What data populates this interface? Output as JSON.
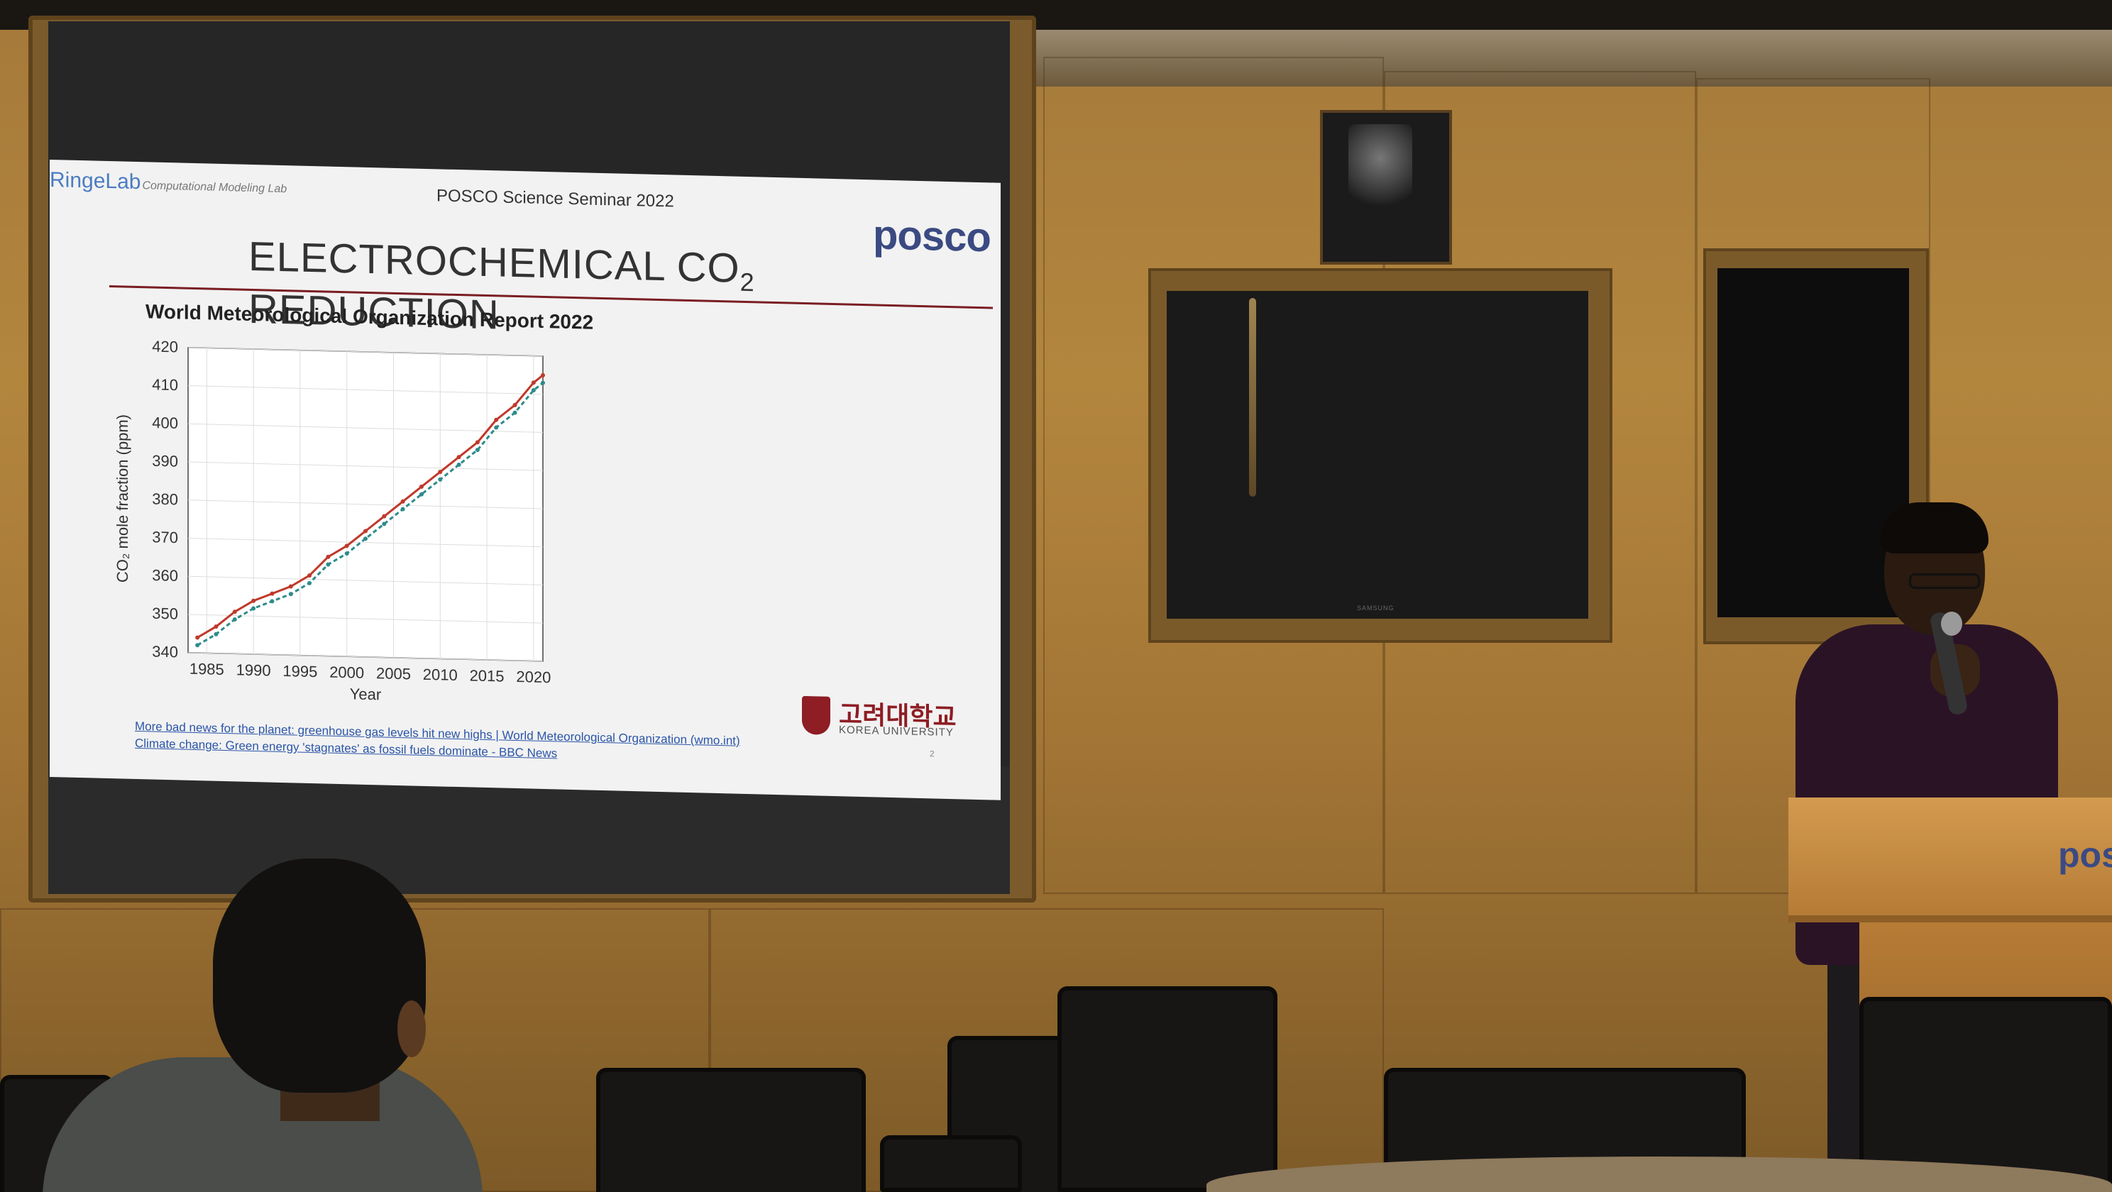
{
  "slide": {
    "lab_logo": "RingeLab",
    "lab_subtitle": "Computational Modeling Lab",
    "seminar_title": "POSCO Science Seminar 2022",
    "posco_logo": "posco",
    "title_main": "ELECTROCHEMICAL CO",
    "title_subscript": "2",
    "title_tail": " REDUCTION",
    "chart_heading": "World Meteorological Organization Report 2022",
    "university_korean": "고려대학교",
    "university_english": "KOREA UNIVERSITY",
    "page_number": "2",
    "source_links": [
      "More bad news for the planet: greenhouse gas levels hit new highs | World Meteorological Organization (wmo.int)",
      "Climate change: Green energy 'stagnates' as fossil fuels dominate - BBC News"
    ]
  },
  "tv_brand": "SAMSUNG",
  "podium_logo": "pos",
  "chart_data": {
    "type": "line",
    "title": "",
    "xlabel": "Year",
    "ylabel": "CO₂ mole fraction (ppm)",
    "xlim": [
      1983,
      2021
    ],
    "ylim": [
      340,
      420
    ],
    "xticks": [
      1985,
      1990,
      1995,
      2000,
      2005,
      2010,
      2015,
      2020
    ],
    "yticks": [
      340,
      350,
      360,
      370,
      380,
      390,
      400,
      410,
      420
    ],
    "grid": true,
    "series": [
      {
        "color": "#c0392b",
        "x": [
          1984,
          1986,
          1988,
          1990,
          1992,
          1994,
          1996,
          1998,
          2000,
          2002,
          2004,
          2006,
          2008,
          2010,
          2012,
          2014,
          2016,
          2018,
          2020,
          2021
        ],
        "values": [
          344,
          347,
          351,
          354,
          356,
          358,
          361,
          366,
          369,
          373,
          377,
          381,
          385,
          389,
          393,
          397,
          403,
          407,
          413,
          415
        ]
      },
      {
        "color": "#2e8b8b",
        "x": [
          1984,
          1986,
          1988,
          1990,
          1992,
          1994,
          1996,
          1998,
          2000,
          2002,
          2004,
          2006,
          2008,
          2010,
          2012,
          2014,
          2016,
          2018,
          2020,
          2021
        ],
        "values": [
          342,
          345,
          349,
          352,
          354,
          356,
          359,
          364,
          367,
          371,
          375,
          379,
          383,
          387,
          391,
          395,
          401,
          405,
          411,
          413
        ]
      }
    ]
  }
}
